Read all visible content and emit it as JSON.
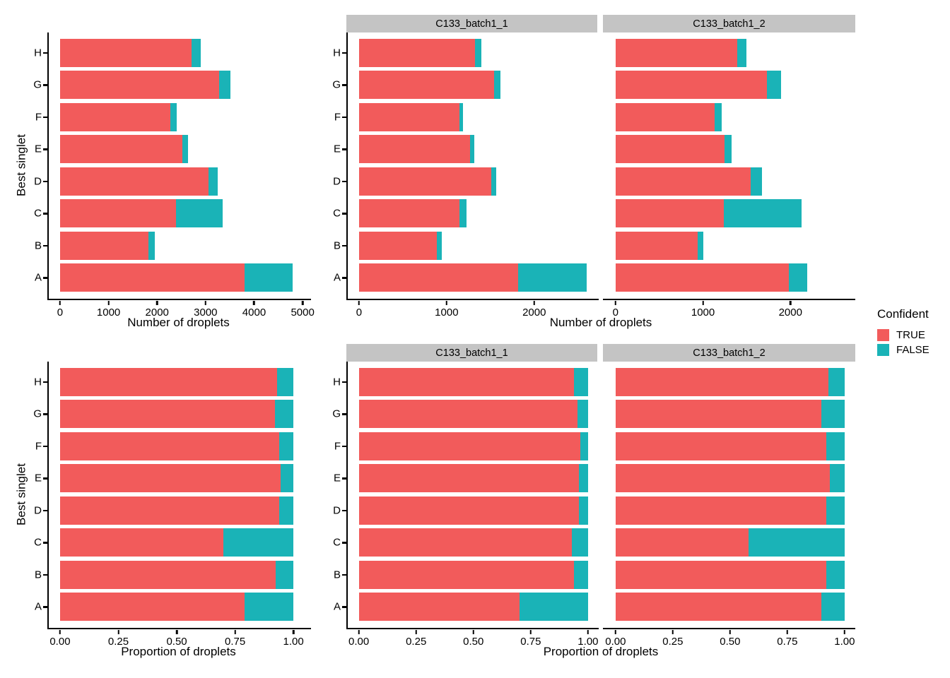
{
  "figure": {
    "axis_titles": {
      "y": "Best singlet",
      "x_counts": "Number of droplets",
      "x_props": "Proportion of droplets"
    },
    "colors": {
      "series": {
        "TRUE": "#F25B5B",
        "FALSE": "#1AB3B7"
      },
      "strip_bg": "#C4C4C4",
      "axis_line": "#000000"
    },
    "legend": {
      "title": "Confident",
      "items": [
        {
          "label": "TRUE",
          "color_key": "TRUE"
        },
        {
          "label": "FALSE",
          "color_key": "FALSE"
        }
      ]
    }
  },
  "chart_data": [
    {
      "id": "counts_overall",
      "type": "bar",
      "stacked": true,
      "orientation": "horizontal",
      "facet": null,
      "xlabel": "Number of droplets",
      "ylabel": "Best singlet",
      "categories": [
        "H",
        "G",
        "F",
        "E",
        "D",
        "C",
        "B",
        "A"
      ],
      "series": [
        {
          "name": "TRUE",
          "values": [
            2715,
            3275,
            2280,
            2520,
            3055,
            2390,
            1825,
            3800
          ]
        },
        {
          "name": "FALSE",
          "values": [
            185,
            230,
            120,
            120,
            190,
            965,
            125,
            990
          ]
        }
      ],
      "xticks": [
        0,
        1000,
        2000,
        3000,
        4000,
        5000
      ],
      "xtick_labels": [
        "0",
        "1000",
        "2000",
        "3000",
        "4000",
        "5000"
      ],
      "xlim": [
        0,
        5300
      ],
      "grid": false
    },
    {
      "id": "counts_batch1_1",
      "type": "bar",
      "stacked": true,
      "orientation": "horizontal",
      "facet": "C133_batch1_1",
      "xlabel": "Number of droplets",
      "ylabel": "Best singlet",
      "categories": [
        "H",
        "G",
        "F",
        "E",
        "D",
        "C",
        "B",
        "A"
      ],
      "series": [
        {
          "name": "TRUE",
          "values": [
            1320,
            1545,
            1150,
            1270,
            1510,
            1150,
            890,
            1820
          ]
        },
        {
          "name": "FALSE",
          "values": [
            80,
            70,
            35,
            45,
            60,
            80,
            55,
            780
          ]
        }
      ],
      "xticks": [
        0,
        1000,
        2000
      ],
      "xtick_labels": [
        "0",
        "1000",
        "2000"
      ],
      "xlim": [
        0,
        2740
      ],
      "grid": false
    },
    {
      "id": "counts_batch1_2",
      "type": "bar",
      "stacked": true,
      "orientation": "horizontal",
      "facet": "C133_batch1_2",
      "xlabel": "Number of droplets",
      "ylabel": "Best singlet",
      "categories": [
        "H",
        "G",
        "F",
        "E",
        "D",
        "C",
        "B",
        "A"
      ],
      "series": [
        {
          "name": "TRUE",
          "values": [
            1395,
            1730,
            1130,
            1250,
            1545,
            1240,
            935,
            1980
          ]
        },
        {
          "name": "FALSE",
          "values": [
            105,
            160,
            85,
            75,
            130,
            885,
            70,
            210
          ]
        }
      ],
      "xticks": [
        0,
        1000,
        2000
      ],
      "xtick_labels": [
        "0",
        "1000",
        "2000"
      ],
      "xlim": [
        0,
        2740
      ],
      "grid": false
    },
    {
      "id": "props_overall",
      "type": "bar",
      "stacked": true,
      "orientation": "horizontal",
      "facet": null,
      "xlabel": "Proportion of droplets",
      "ylabel": "Best singlet",
      "categories": [
        "H",
        "G",
        "F",
        "E",
        "D",
        "C",
        "B",
        "A"
      ],
      "series": [
        {
          "name": "TRUE",
          "values": [
            0.93,
            0.92,
            0.94,
            0.945,
            0.94,
            0.7,
            0.925,
            0.79
          ]
        },
        {
          "name": "FALSE",
          "values": [
            0.07,
            0.08,
            0.06,
            0.055,
            0.06,
            0.3,
            0.075,
            0.21
          ]
        }
      ],
      "xticks": [
        0,
        0.25,
        0.5,
        0.75,
        1.0
      ],
      "xtick_labels": [
        "0.00",
        "0.25",
        "0.50",
        "0.75",
        "1.00"
      ],
      "xlim": [
        0,
        1.07
      ],
      "grid": false
    },
    {
      "id": "props_batch1_1",
      "type": "bar",
      "stacked": true,
      "orientation": "horizontal",
      "facet": "C133_batch1_1",
      "xlabel": "Proportion of droplets",
      "ylabel": "Best singlet",
      "categories": [
        "H",
        "G",
        "F",
        "E",
        "D",
        "C",
        "B",
        "A"
      ],
      "series": [
        {
          "name": "TRUE",
          "values": [
            0.94,
            0.955,
            0.965,
            0.96,
            0.96,
            0.93,
            0.94,
            0.7
          ]
        },
        {
          "name": "FALSE",
          "values": [
            0.06,
            0.045,
            0.035,
            0.04,
            0.04,
            0.07,
            0.06,
            0.3
          ]
        }
      ],
      "xticks": [
        0,
        0.25,
        0.5,
        0.75,
        1.0
      ],
      "xtick_labels": [
        "0.00",
        "0.25",
        "0.50",
        "0.75",
        "1.00"
      ],
      "xlim": [
        0,
        1.07
      ],
      "grid": false
    },
    {
      "id": "props_batch1_2",
      "type": "bar",
      "stacked": true,
      "orientation": "horizontal",
      "facet": "C133_batch1_2",
      "xlabel": "Proportion of droplets",
      "ylabel": "Best singlet",
      "categories": [
        "H",
        "G",
        "F",
        "E",
        "D",
        "C",
        "B",
        "A"
      ],
      "series": [
        {
          "name": "TRUE",
          "values": [
            0.93,
            0.9,
            0.92,
            0.935,
            0.92,
            0.58,
            0.92,
            0.9
          ]
        },
        {
          "name": "FALSE",
          "values": [
            0.07,
            0.1,
            0.08,
            0.065,
            0.08,
            0.42,
            0.08,
            0.1
          ]
        }
      ],
      "xticks": [
        0,
        0.25,
        0.5,
        0.75,
        1.0
      ],
      "xtick_labels": [
        "0.00",
        "0.25",
        "0.50",
        "0.75",
        "1.00"
      ],
      "xlim": [
        0,
        1.07
      ],
      "grid": false
    }
  ]
}
